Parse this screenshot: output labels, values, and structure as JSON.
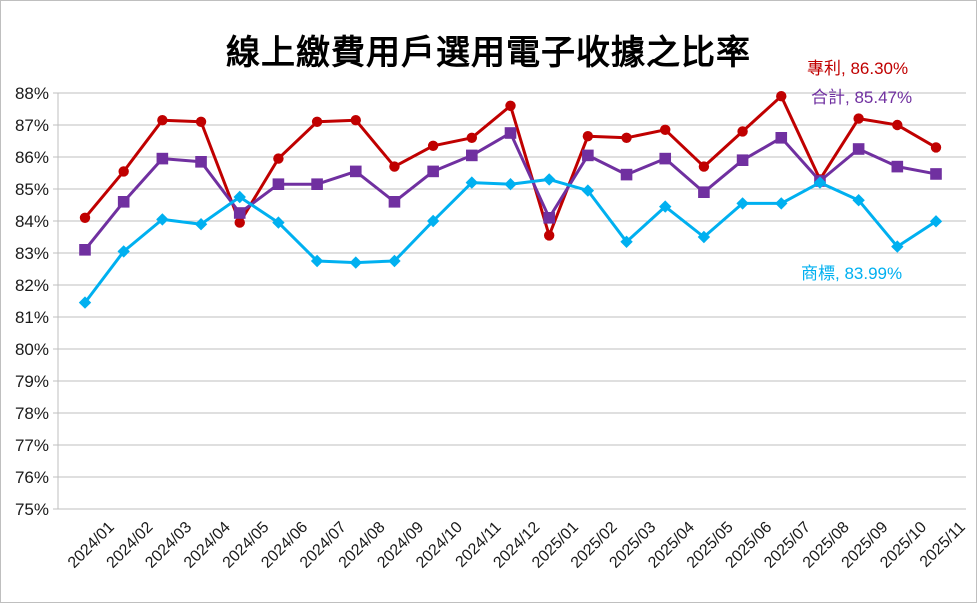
{
  "title": "線上繳費用戶選用電子收據之比率",
  "colors": {
    "grid": "#bfbfbf",
    "axis": "#bfbfbf",
    "tick_text": "#1a1a1a",
    "background": "#ffffff",
    "series_patent": "#c00000",
    "series_total": "#7030a0",
    "series_trademark": "#00b0f0"
  },
  "chart_data": {
    "type": "line",
    "title": "線上繳費用戶選用電子收據之比率",
    "x": [
      "2024/01",
      "2024/02",
      "2024/03",
      "2024/04",
      "2024/05",
      "2024/06",
      "2024/07",
      "2024/08",
      "2024/09",
      "2024/10",
      "2024/11",
      "2024/12",
      "2025/01",
      "2025/02",
      "2025/03",
      "2025/04",
      "2025/05",
      "2025/06",
      "2025/07",
      "2025/08",
      "2025/09",
      "2025/10",
      "2025/11"
    ],
    "ylim": [
      75,
      88
    ],
    "ytick_step": 1,
    "ytick_suffix": "%",
    "grid": true,
    "legend_position": "inline-end-labels",
    "series": [
      {
        "name": "專利",
        "color": "#c00000",
        "marker": "circle",
        "end_label": "專利, 86.30%",
        "values": [
          84.1,
          85.55,
          87.15,
          87.1,
          83.95,
          85.95,
          87.1,
          87.15,
          85.7,
          86.35,
          86.6,
          87.6,
          83.55,
          86.65,
          86.6,
          86.85,
          85.7,
          86.8,
          87.9,
          85.3,
          87.2,
          87.0,
          86.3
        ]
      },
      {
        "name": "合計",
        "color": "#7030a0",
        "marker": "square",
        "end_label": "合計, 85.47%",
        "values": [
          83.1,
          84.6,
          85.95,
          85.85,
          84.25,
          85.15,
          85.15,
          85.55,
          84.6,
          85.55,
          86.05,
          86.75,
          84.1,
          86.05,
          85.45,
          85.95,
          84.9,
          85.9,
          86.6,
          85.25,
          86.25,
          85.7,
          85.47
        ]
      },
      {
        "name": "商標",
        "color": "#00b0f0",
        "marker": "diamond",
        "end_label": "商標, 83.99%",
        "values": [
          81.45,
          83.05,
          84.05,
          83.9,
          84.75,
          83.95,
          82.75,
          82.7,
          82.75,
          84.0,
          85.2,
          85.15,
          85.3,
          84.95,
          83.35,
          84.45,
          83.5,
          84.55,
          84.55,
          85.2,
          84.65,
          83.2,
          83.99
        ]
      }
    ]
  }
}
